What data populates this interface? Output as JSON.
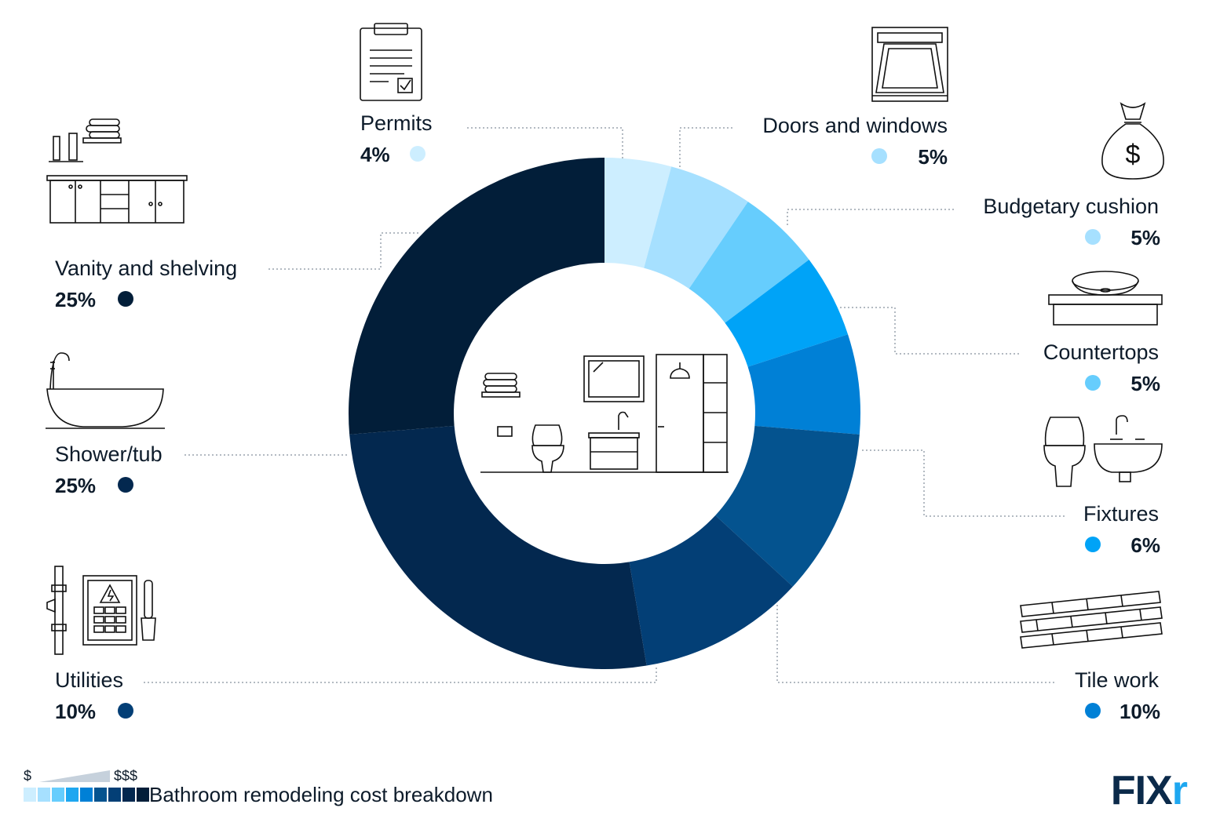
{
  "chart_data": {
    "type": "pie",
    "title": "Bathroom remodeling cost breakdown",
    "unit": "%",
    "slices": [
      {
        "label": "Permits",
        "value": 4,
        "pct_label": "4%",
        "color": "#cdeeff"
      },
      {
        "label": "Doors and windows",
        "value": 5,
        "pct_label": "5%",
        "color": "#a6e0ff"
      },
      {
        "label": "Budgetary cushion",
        "value": 5,
        "pct_label": "5%",
        "color": "#66cdfd"
      },
      {
        "label": "Countertops",
        "value": 5,
        "pct_label": "5%",
        "color": "#00a3f7"
      },
      {
        "label": "Fixtures",
        "value": 6,
        "pct_label": "6%",
        "color": "#0080d6"
      },
      {
        "label": "Tile work",
        "value": 10,
        "pct_label": "10%",
        "color": "#04538f"
      },
      {
        "label": "Utilities",
        "value": 10,
        "pct_label": "10%",
        "color": "#033f76"
      },
      {
        "label": "Shower/tub",
        "value": 25,
        "pct_label": "25%",
        "color": "#03284f"
      },
      {
        "label": "Vanity and shelving",
        "value": 25,
        "pct_label": "25%",
        "color": "#021e39"
      }
    ],
    "grid": false,
    "legend": "cost-scale bottom-left"
  },
  "legend": {
    "low": "$",
    "high": "$$$",
    "title": "Bathroom remodeling cost breakdown",
    "scale_colors": [
      "#cdeeff",
      "#a6e0ff",
      "#66cdfd",
      "#1ea7f0",
      "#0080d6",
      "#04538f",
      "#033f76",
      "#03284f",
      "#021e39"
    ]
  },
  "brand": {
    "text": "FIX",
    "accent_text": "r"
  },
  "icons": {
    "permits": "clipboard-checklist-icon",
    "doors_windows": "window-icon",
    "budgetary_cushion": "money-bag-icon",
    "vanity": "vanity-cabinet-icon",
    "countertops": "vessel-sink-countertop-icon",
    "shower_tub": "bathtub-icon",
    "fixtures": "toilet-sink-icon",
    "utilities": "electrical-panel-icon",
    "tile_work": "brick-tiles-icon",
    "center": "bathroom-scene-icon"
  }
}
